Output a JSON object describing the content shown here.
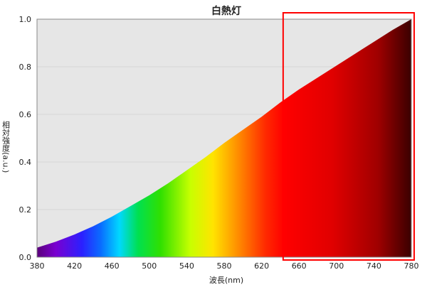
{
  "chart_data": {
    "type": "area",
    "title": "白熱灯",
    "xlabel": "波長(nm)",
    "ylabel": "相対強度(a.u.)",
    "xlim": [
      380,
      780
    ],
    "ylim": [
      0,
      1.0
    ],
    "x_ticks": [
      380,
      420,
      460,
      500,
      540,
      580,
      620,
      660,
      700,
      740,
      780
    ],
    "y_ticks": [
      0.0,
      0.2,
      0.4,
      0.6,
      0.8,
      1.0
    ],
    "x_tick_labels": [
      "380",
      "420",
      "460",
      "500",
      "540",
      "580",
      "620",
      "660",
      "700",
      "740",
      "780"
    ],
    "y_tick_labels": [
      "0.0",
      "0.2",
      "0.4",
      "0.6",
      "0.8",
      "1.0"
    ],
    "grid": true,
    "series": [
      {
        "x": [
          380,
          400,
          420,
          440,
          460,
          480,
          500,
          520,
          540,
          560,
          580,
          600,
          620,
          640,
          660,
          680,
          700,
          720,
          740,
          760,
          780
        ],
        "y": [
          0.04,
          0.065,
          0.095,
          0.13,
          0.17,
          0.215,
          0.26,
          0.31,
          0.365,
          0.42,
          0.48,
          0.535,
          0.59,
          0.65,
          0.705,
          0.755,
          0.805,
          0.855,
          0.905,
          0.955,
          1.0
        ]
      }
    ],
    "annotations": [
      {
        "type": "highlight-box",
        "x_range": [
          643,
          783
        ],
        "color": "#ff0000"
      }
    ],
    "colors": {
      "plot_bg": "#e6e6e6",
      "grid": "#c8c8c8",
      "highlight": "#ff0000"
    }
  }
}
